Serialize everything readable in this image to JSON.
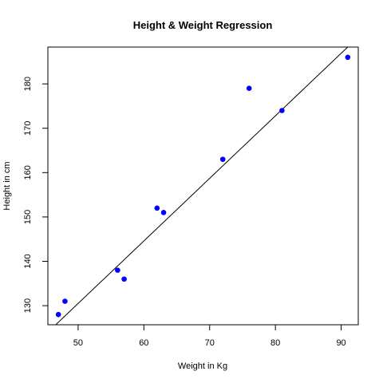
{
  "chart_data": {
    "type": "scatter",
    "title": "Height & Weight Regression",
    "xlabel": "Weight in Kg",
    "ylabel": "Height in cm",
    "xlim": [
      45.4,
      92.6
    ],
    "ylim": [
      125.7,
      188.3
    ],
    "x_ticks": [
      50,
      60,
      70,
      80,
      90
    ],
    "y_ticks": [
      130,
      140,
      150,
      160,
      170,
      180
    ],
    "grid": false,
    "legend": "none",
    "points": [
      {
        "x": 47,
        "y": 128
      },
      {
        "x": 48,
        "y": 131
      },
      {
        "x": 56,
        "y": 138
      },
      {
        "x": 57,
        "y": 136
      },
      {
        "x": 62,
        "y": 152
      },
      {
        "x": 63,
        "y": 151
      },
      {
        "x": 72,
        "y": 163
      },
      {
        "x": 76,
        "y": 179
      },
      {
        "x": 81,
        "y": 174
      },
      {
        "x": 91,
        "y": 186
      }
    ],
    "regression_line": {
      "intercept": 60.0,
      "slope": 1.41
    },
    "point_color": "#0000ff",
    "line_color": "#000000"
  }
}
